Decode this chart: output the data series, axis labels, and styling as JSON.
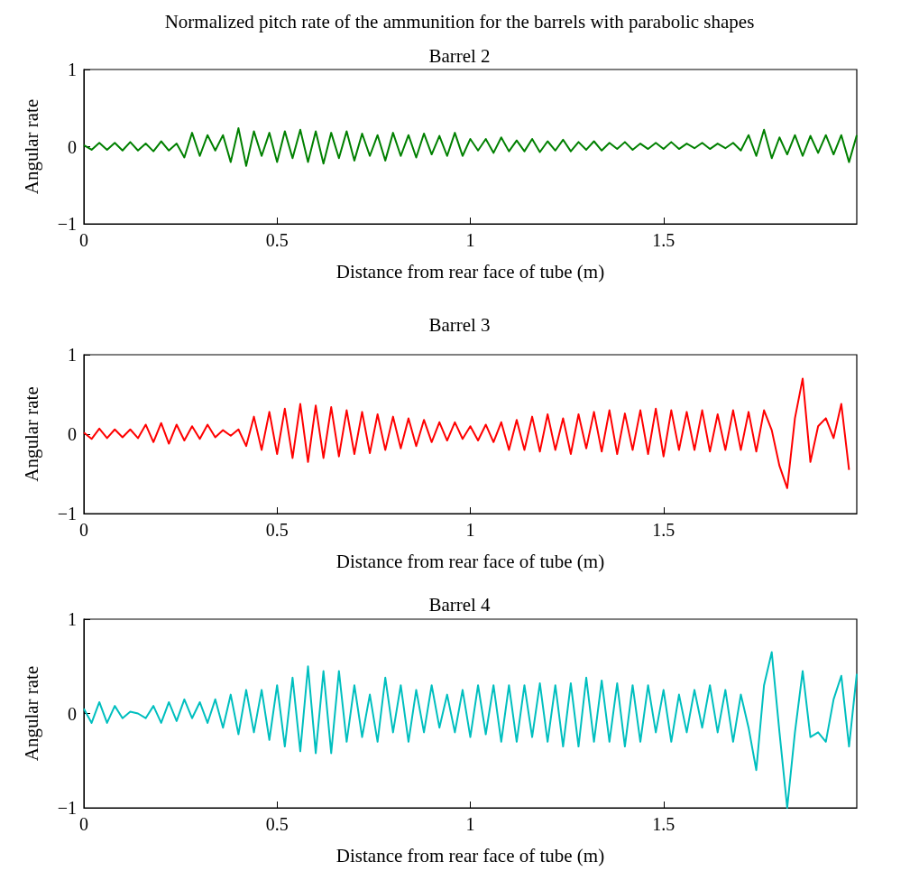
{
  "chart_data": [
    {
      "type": "line",
      "title": "Normalized pitch rate of the ammunition for the barrels with parabolic shapes",
      "subtitle": "Barrel 2",
      "xlabel": "Distance from rear face of tube (m)",
      "ylabel": "Angular rate",
      "xlim": [
        0,
        2
      ],
      "xticks": [
        0,
        0.5,
        1,
        1.5
      ],
      "ylim": [
        -1,
        1
      ],
      "yticks": [
        -1,
        0,
        1
      ],
      "marker": "none",
      "line_style": "solid",
      "x": [
        0,
        0.02,
        0.04,
        0.06,
        0.08,
        0.1,
        0.12,
        0.14,
        0.16,
        0.18,
        0.2,
        0.22,
        0.24,
        0.26,
        0.28,
        0.3,
        0.32,
        0.34,
        0.36,
        0.38,
        0.4,
        0.42,
        0.44,
        0.46,
        0.48,
        0.5,
        0.52,
        0.54,
        0.56,
        0.58,
        0.6,
        0.62,
        0.64,
        0.66,
        0.68,
        0.7,
        0.72,
        0.74,
        0.76,
        0.78,
        0.8,
        0.82,
        0.84,
        0.86,
        0.88,
        0.9,
        0.92,
        0.94,
        0.96,
        0.98,
        1,
        1.02,
        1.04,
        1.06,
        1.08,
        1.1,
        1.12,
        1.14,
        1.16,
        1.18,
        1.2,
        1.22,
        1.24,
        1.26,
        1.28,
        1.3,
        1.32,
        1.34,
        1.36,
        1.38,
        1.4,
        1.42,
        1.44,
        1.46,
        1.48,
        1.5,
        1.52,
        1.54,
        1.56,
        1.58,
        1.6,
        1.62,
        1.64,
        1.66,
        1.68,
        1.7,
        1.72,
        1.74,
        1.76,
        1.78,
        1.8,
        1.82,
        1.84,
        1.86,
        1.88,
        1.9,
        1.92,
        1.94,
        1.96,
        1.98,
        2
      ],
      "series": [
        {
          "color": "#008000",
          "values": [
            0.02,
            -0.04,
            0.05,
            -0.04,
            0.05,
            -0.05,
            0.06,
            -0.05,
            0.04,
            -0.06,
            0.07,
            -0.05,
            0.04,
            -0.14,
            0.18,
            -0.12,
            0.15,
            -0.05,
            0.15,
            -0.2,
            0.24,
            -0.25,
            0.2,
            -0.12,
            0.18,
            -0.2,
            0.2,
            -0.15,
            0.22,
            -0.2,
            0.2,
            -0.22,
            0.18,
            -0.15,
            0.2,
            -0.18,
            0.17,
            -0.12,
            0.15,
            -0.18,
            0.18,
            -0.12,
            0.15,
            -0.14,
            0.17,
            -0.1,
            0.14,
            -0.12,
            0.18,
            -0.12,
            0.1,
            -0.05,
            0.1,
            -0.08,
            0.12,
            -0.06,
            0.08,
            -0.06,
            0.1,
            -0.07,
            0.07,
            -0.05,
            0.09,
            -0.06,
            0.06,
            -0.04,
            0.07,
            -0.05,
            0.05,
            -0.03,
            0.06,
            -0.04,
            0.04,
            -0.03,
            0.05,
            -0.03,
            0.06,
            -0.03,
            0.04,
            -0.02,
            0.05,
            -0.03,
            0.04,
            -0.02,
            0.05,
            -0.05,
            0.15,
            -0.12,
            0.22,
            -0.15,
            0.12,
            -0.1,
            0.15,
            -0.12,
            0.14,
            -0.08,
            0.15,
            -0.1,
            0.15,
            -0.2,
            0.15
          ]
        }
      ]
    },
    {
      "type": "line",
      "title": "Barrel 3",
      "xlabel": "Distance from rear face of tube (m)",
      "ylabel": "Angular rate",
      "xlim": [
        0,
        2
      ],
      "xticks": [
        0,
        0.5,
        1,
        1.5
      ],
      "ylim": [
        -1,
        1
      ],
      "yticks": [
        -1,
        0,
        1
      ],
      "marker": "none",
      "line_style": "solid",
      "x": [
        0,
        0.02,
        0.04,
        0.06,
        0.08,
        0.1,
        0.12,
        0.14,
        0.16,
        0.18,
        0.2,
        0.22,
        0.24,
        0.26,
        0.28,
        0.3,
        0.32,
        0.34,
        0.36,
        0.38,
        0.4,
        0.42,
        0.44,
        0.46,
        0.48,
        0.5,
        0.52,
        0.54,
        0.56,
        0.58,
        0.6,
        0.62,
        0.64,
        0.66,
        0.68,
        0.7,
        0.72,
        0.74,
        0.76,
        0.78,
        0.8,
        0.82,
        0.84,
        0.86,
        0.88,
        0.9,
        0.92,
        0.94,
        0.96,
        0.98,
        1,
        1.02,
        1.04,
        1.06,
        1.08,
        1.1,
        1.12,
        1.14,
        1.16,
        1.18,
        1.2,
        1.22,
        1.24,
        1.26,
        1.28,
        1.3,
        1.32,
        1.34,
        1.36,
        1.38,
        1.4,
        1.42,
        1.44,
        1.46,
        1.48,
        1.5,
        1.52,
        1.54,
        1.56,
        1.58,
        1.6,
        1.62,
        1.64,
        1.66,
        1.68,
        1.7,
        1.72,
        1.74,
        1.76,
        1.78,
        1.8,
        1.82,
        1.84,
        1.86,
        1.88,
        1.9,
        1.92,
        1.94,
        1.96,
        1.98
      ],
      "series": [
        {
          "color": "#ff0000",
          "values": [
            0.02,
            -0.06,
            0.07,
            -0.05,
            0.06,
            -0.04,
            0.06,
            -0.05,
            0.12,
            -0.1,
            0.14,
            -0.12,
            0.12,
            -0.08,
            0.1,
            -0.06,
            0.12,
            -0.04,
            0.05,
            -0.02,
            0.06,
            -0.15,
            0.22,
            -0.2,
            0.28,
            -0.25,
            0.32,
            -0.3,
            0.38,
            -0.35,
            0.36,
            -0.3,
            0.34,
            -0.28,
            0.3,
            -0.25,
            0.28,
            -0.24,
            0.25,
            -0.2,
            0.22,
            -0.18,
            0.2,
            -0.15,
            0.18,
            -0.1,
            0.15,
            -0.08,
            0.15,
            -0.06,
            0.1,
            -0.08,
            0.12,
            -0.1,
            0.15,
            -0.2,
            0.18,
            -0.2,
            0.22,
            -0.22,
            0.25,
            -0.2,
            0.2,
            -0.25,
            0.25,
            -0.18,
            0.28,
            -0.22,
            0.3,
            -0.25,
            0.26,
            -0.2,
            0.3,
            -0.25,
            0.32,
            -0.28,
            0.3,
            -0.2,
            0.28,
            -0.2,
            0.3,
            -0.22,
            0.25,
            -0.2,
            0.3,
            -0.2,
            0.28,
            -0.22,
            0.3,
            0.05,
            -0.4,
            -0.68,
            0.2,
            0.7,
            -0.35,
            0.1,
            0.2,
            -0.05,
            0.38,
            -0.45
          ]
        }
      ]
    },
    {
      "type": "line",
      "title": "Barrel 4",
      "xlabel": "Distance from rear face of tube (m)",
      "ylabel": "Angular rate",
      "xlim": [
        0,
        2
      ],
      "xticks": [
        0,
        0.5,
        1,
        1.5
      ],
      "ylim": [
        -1,
        1
      ],
      "yticks": [
        -1,
        0,
        1
      ],
      "marker": "none",
      "line_style": "solid",
      "x": [
        0,
        0.02,
        0.04,
        0.06,
        0.08,
        0.1,
        0.12,
        0.14,
        0.16,
        0.18,
        0.2,
        0.22,
        0.24,
        0.26,
        0.28,
        0.3,
        0.32,
        0.34,
        0.36,
        0.38,
        0.4,
        0.42,
        0.44,
        0.46,
        0.48,
        0.5,
        0.52,
        0.54,
        0.56,
        0.58,
        0.6,
        0.62,
        0.64,
        0.66,
        0.68,
        0.7,
        0.72,
        0.74,
        0.76,
        0.78,
        0.8,
        0.82,
        0.84,
        0.86,
        0.88,
        0.9,
        0.92,
        0.94,
        0.96,
        0.98,
        1,
        1.02,
        1.04,
        1.06,
        1.08,
        1.1,
        1.12,
        1.14,
        1.16,
        1.18,
        1.2,
        1.22,
        1.24,
        1.26,
        1.28,
        1.3,
        1.32,
        1.34,
        1.36,
        1.38,
        1.4,
        1.42,
        1.44,
        1.46,
        1.48,
        1.5,
        1.52,
        1.54,
        1.56,
        1.58,
        1.6,
        1.62,
        1.64,
        1.66,
        1.68,
        1.7,
        1.72,
        1.74,
        1.76,
        1.78,
        1.8,
        1.82,
        1.84,
        1.86,
        1.88,
        1.9,
        1.92,
        1.94,
        1.96,
        1.98,
        2
      ],
      "series": [
        {
          "color": "#00bfbf",
          "values": [
            0.05,
            -0.1,
            0.12,
            -0.1,
            0.08,
            -0.05,
            0.02,
            0,
            -0.05,
            0.08,
            -0.1,
            0.12,
            -0.08,
            0.15,
            -0.05,
            0.12,
            -0.1,
            0.15,
            -0.15,
            0.2,
            -0.22,
            0.25,
            -0.2,
            0.25,
            -0.28,
            0.3,
            -0.35,
            0.38,
            -0.4,
            0.5,
            -0.42,
            0.45,
            -0.42,
            0.45,
            -0.3,
            0.3,
            -0.25,
            0.2,
            -0.3,
            0.38,
            -0.2,
            0.3,
            -0.3,
            0.25,
            -0.2,
            0.3,
            -0.15,
            0.2,
            -0.2,
            0.25,
            -0.25,
            0.3,
            -0.22,
            0.3,
            -0.3,
            0.3,
            -0.3,
            0.3,
            -0.25,
            0.32,
            -0.3,
            0.3,
            -0.35,
            0.32,
            -0.35,
            0.38,
            -0.3,
            0.35,
            -0.3,
            0.32,
            -0.35,
            0.3,
            -0.3,
            0.3,
            -0.2,
            0.25,
            -0.3,
            0.2,
            -0.2,
            0.25,
            -0.15,
            0.3,
            -0.2,
            0.25,
            -0.3,
            0.2,
            -0.15,
            -0.6,
            0.3,
            0.65,
            -0.2,
            -1,
            -0.2,
            0.45,
            -0.25,
            -0.2,
            -0.3,
            0.15,
            0.4,
            -0.35,
            0.42
          ]
        }
      ]
    }
  ]
}
